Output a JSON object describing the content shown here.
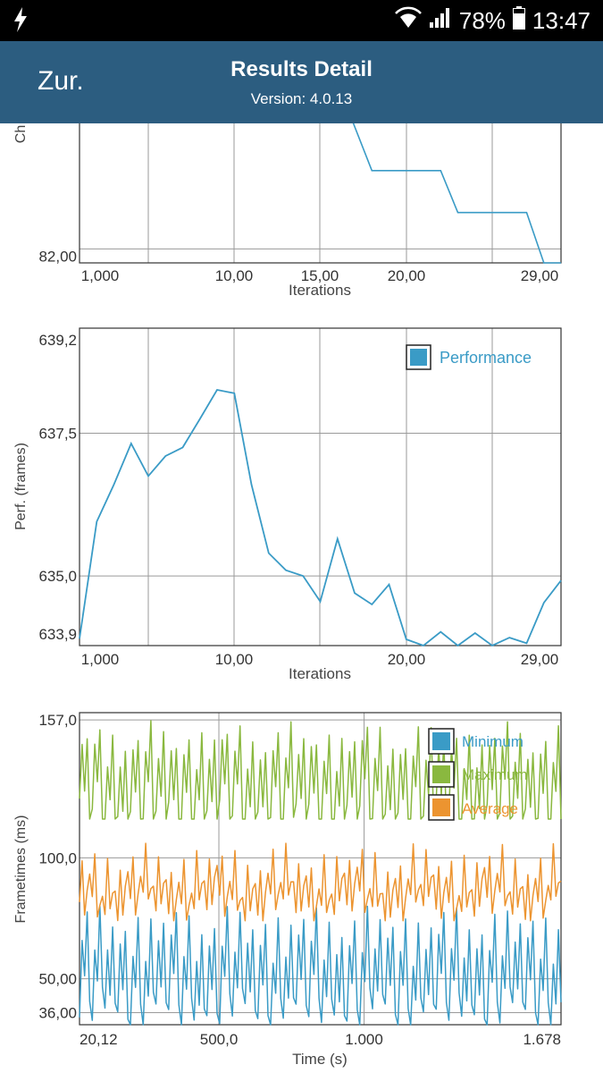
{
  "status_bar": {
    "battery": "78%",
    "time": "13:47"
  },
  "header": {
    "back_label": "Zur.",
    "title": "Results Detail",
    "version": "Version: 4.0.13"
  },
  "colors": {
    "header_bg": "#2c5d80",
    "blue": "#3a9bc6",
    "green": "#8ab83f",
    "orange": "#ec9430",
    "grid": "#999999"
  },
  "chart_data": [
    {
      "type": "line",
      "ylabel": "Ch",
      "xlabel": "Iterations",
      "y_ticks": [
        {
          "label": "82,00",
          "y": 82.0
        }
      ],
      "x_ticks": [
        "1,000",
        "10,00",
        "15,00",
        "20,00",
        "29,00"
      ],
      "ylim": [
        81.75,
        84.5
      ],
      "series": [
        {
          "points": [
            [
              15.6,
              84.5
            ],
            [
              17,
              83.4
            ],
            [
              21,
              83.4
            ],
            [
              22,
              82.65
            ],
            [
              26,
              82.65
            ],
            [
              27,
              81.75
            ],
            [
              28,
              81.75
            ]
          ]
        }
      ]
    },
    {
      "type": "line",
      "ylabel": "Perf. (frames)",
      "xlabel": "Iterations",
      "y_ticks": [
        {
          "label": "639,2",
          "y": 639.2
        },
        {
          "label": "637,5",
          "y": 637.5
        },
        {
          "label": "635,0",
          "y": 635.0
        },
        {
          "label": "633,9",
          "y": 633.9
        }
      ],
      "x_ticks": [
        "1,000",
        "10,00",
        "20,00",
        "29,00"
      ],
      "ylim": [
        633.78,
        639.34
      ],
      "legend": [
        "Performance"
      ],
      "series": [
        {
          "name": "Performance",
          "color": "#3a9bc6",
          "points": [
            [
              0,
              633.9
            ],
            [
              1,
              635.95
            ],
            [
              2,
              636.6
            ],
            [
              3,
              637.32
            ],
            [
              4,
              636.75
            ],
            [
              5,
              637.1
            ],
            [
              6,
              637.25
            ],
            [
              7,
              637.75
            ],
            [
              8,
              638.26
            ],
            [
              9,
              638.2
            ],
            [
              10,
              636.6
            ],
            [
              11,
              635.4
            ],
            [
              12,
              635.1
            ],
            [
              13,
              635.0
            ],
            [
              14,
              634.55
            ],
            [
              15,
              635.65
            ],
            [
              16,
              634.7
            ],
            [
              17,
              634.5
            ],
            [
              18,
              634.85
            ],
            [
              19,
              633.89
            ],
            [
              20,
              633.78
            ],
            [
              21,
              634.02
            ],
            [
              22,
              633.78
            ],
            [
              23,
              634.0
            ],
            [
              24,
              633.78
            ],
            [
              25,
              633.92
            ],
            [
              26,
              633.82
            ],
            [
              27,
              634.53
            ],
            [
              28,
              634.92
            ]
          ]
        }
      ]
    },
    {
      "type": "line",
      "ylabel": "Frametimes (ms)",
      "xlabel": "Time (s)",
      "y_ticks": [
        {
          "label": "157,0",
          "y": 157.0
        },
        {
          "label": "100,0",
          "y": 100.0
        },
        {
          "label": "50,00",
          "y": 50.0
        },
        {
          "label": "36,00",
          "y": 36.0
        }
      ],
      "x_ticks": [
        {
          "label": "20,12",
          "x": 20.12
        },
        {
          "label": "500,0",
          "x": 500
        },
        {
          "label": "1.000",
          "x": 1000
        },
        {
          "label": "1.678",
          "x": 1678
        }
      ],
      "xlim": [
        20.12,
        1678
      ],
      "ylim": [
        31,
        160
      ],
      "legend": [
        "Minimum",
        "Maximum",
        "Average"
      ],
      "series": [
        {
          "name": "Minimum",
          "color": "#3a9bc6",
          "period": 5,
          "cycle": [
            34,
            62,
            46,
            74,
            40
          ],
          "range": [
            31,
            86
          ]
        },
        {
          "name": "Maximum",
          "color": "#8ab83f",
          "period": 5,
          "cycle": [
            118,
            142,
            126,
            150,
            110
          ],
          "range": [
            116,
            160
          ]
        },
        {
          "name": "Average",
          "color": "#ec9430",
          "period": 5,
          "cycle": [
            80,
            100,
            78,
            86,
            90
          ],
          "range": [
            74,
            106
          ]
        }
      ]
    }
  ]
}
